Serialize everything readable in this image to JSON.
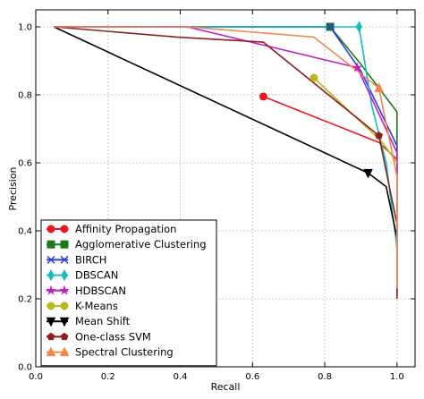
{
  "chart_data": {
    "type": "line",
    "xlabel": "Recall",
    "ylabel": "Precision",
    "xlim": [
      0.0,
      1.05
    ],
    "ylim": [
      0.0,
      1.05
    ],
    "xticks": [
      0.0,
      0.2,
      0.4,
      0.6,
      0.8,
      1.0
    ],
    "yticks": [
      0.0,
      0.2,
      0.4,
      0.6,
      0.8,
      1.0
    ],
    "xtick_labels": [
      "0.0",
      "0.2",
      "0.4",
      "0.6",
      "0.8",
      "1.0"
    ],
    "ytick_labels": [
      "0.0",
      "0.2",
      "0.4",
      "0.6",
      "0.8",
      "1.0"
    ],
    "grid": true,
    "legend_position": "lower-left",
    "series": [
      {
        "name": "Affinity Propagation",
        "color": "#e8191c",
        "marker": "circle",
        "points": [
          [
            0.63,
            0.795
          ],
          [
            0.95,
            0.66
          ],
          [
            1.0,
            0.61
          ]
        ],
        "marker_points": [
          [
            0.63,
            0.795
          ]
        ]
      },
      {
        "name": "Agglomerative Clustering",
        "color": "#1b7a1b",
        "marker": "square",
        "points": [
          [
            0.05,
            1.0
          ],
          [
            0.815,
            1.0
          ],
          [
            0.9,
            0.89
          ],
          [
            1.0,
            0.75
          ],
          [
            1.0,
            0.23
          ]
        ],
        "marker_points": [
          [
            0.815,
            1.0
          ]
        ]
      },
      {
        "name": "BIRCH",
        "color": "#2a3be0",
        "marker": "x",
        "points": [
          [
            0.05,
            1.0
          ],
          [
            0.815,
            1.0
          ],
          [
            0.9,
            0.87
          ],
          [
            1.0,
            0.65
          ],
          [
            1.0,
            0.21
          ]
        ],
        "marker_points": [
          [
            0.815,
            1.0
          ]
        ]
      },
      {
        "name": "DBSCAN",
        "color": "#10bcbc",
        "marker": "diamond",
        "points": [
          [
            0.05,
            1.0
          ],
          [
            0.895,
            1.0
          ],
          [
            0.93,
            0.77
          ],
          [
            0.97,
            0.6
          ],
          [
            1.0,
            0.35
          ]
        ],
        "marker_points": [
          [
            0.895,
            1.0
          ]
        ]
      },
      {
        "name": "HDBSCAN",
        "color": "#c020c0",
        "marker": "star",
        "points": [
          [
            0.05,
            1.0
          ],
          [
            0.42,
            1.0
          ],
          [
            0.89,
            0.88
          ],
          [
            1.0,
            0.63
          ],
          [
            1.0,
            0.21
          ]
        ],
        "marker_points": [
          [
            0.89,
            0.88
          ]
        ]
      },
      {
        "name": "K-Means",
        "color": "#b8b820",
        "marker": "circle",
        "points": [
          [
            0.77,
            0.85
          ],
          [
            0.96,
            0.66
          ],
          [
            1.0,
            0.6
          ]
        ],
        "marker_points": [
          [
            0.77,
            0.85
          ]
        ]
      },
      {
        "name": "Mean Shift",
        "color": "#000000",
        "marker": "triangle-down",
        "points": [
          [
            0.05,
            1.0
          ],
          [
            0.92,
            0.57
          ],
          [
            0.97,
            0.53
          ],
          [
            1.0,
            0.38
          ]
        ],
        "marker_points": [
          [
            0.92,
            0.57
          ]
        ]
      },
      {
        "name": "One-class SVM",
        "color": "#8b2020",
        "marker": "pentagon",
        "points": [
          [
            0.05,
            1.0
          ],
          [
            0.39,
            0.97
          ],
          [
            0.63,
            0.955
          ],
          [
            0.95,
            0.68
          ],
          [
            1.0,
            0.42
          ],
          [
            1.0,
            0.2
          ]
        ],
        "marker_points": [
          [
            0.95,
            0.68
          ]
        ]
      },
      {
        "name": "Spectral Clustering",
        "color": "#f08850",
        "marker": "triangle-up",
        "points": [
          [
            0.05,
            1.0
          ],
          [
            0.42,
            1.0
          ],
          [
            0.77,
            0.97
          ],
          [
            0.95,
            0.82
          ],
          [
            1.0,
            0.56
          ],
          [
            1.0,
            0.23
          ]
        ],
        "marker_points": [
          [
            0.95,
            0.82
          ]
        ]
      }
    ]
  }
}
